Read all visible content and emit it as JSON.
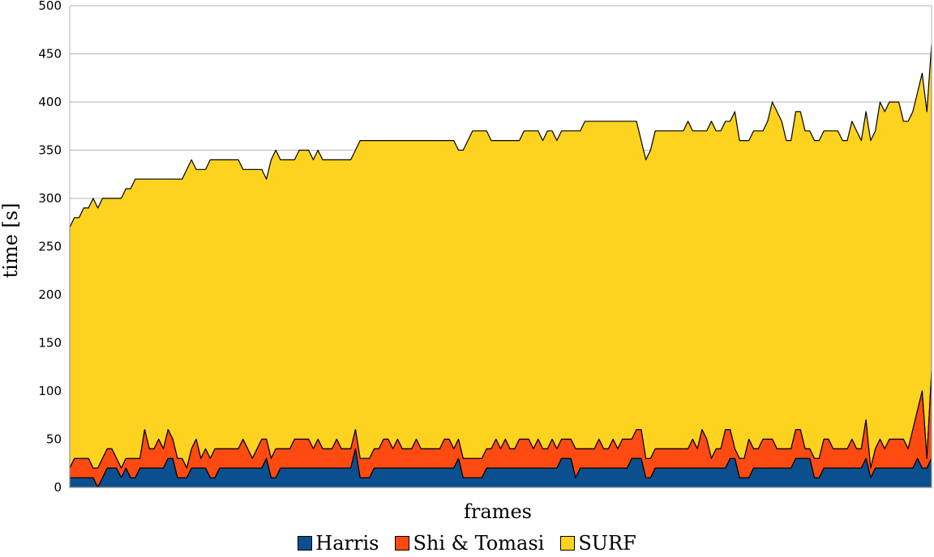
{
  "chart_data": {
    "type": "area",
    "stacked": true,
    "xlabel": "frames",
    "ylabel": "time [s]",
    "ylim": [
      0,
      500
    ],
    "yticks": [
      0,
      50,
      100,
      150,
      200,
      250,
      300,
      350,
      400,
      450,
      500
    ],
    "grid": "horizontal",
    "legend_position": "bottom",
    "n_frames": 185,
    "series": [
      {
        "name": "Harris",
        "color": "#0b4f8e",
        "values": [
          10,
          10,
          10,
          10,
          10,
          10,
          0,
          10,
          20,
          20,
          20,
          10,
          20,
          10,
          10,
          20,
          20,
          20,
          20,
          20,
          20,
          30,
          30,
          10,
          10,
          10,
          20,
          20,
          20,
          20,
          10,
          10,
          20,
          20,
          20,
          20,
          20,
          20,
          20,
          20,
          20,
          20,
          30,
          10,
          10,
          20,
          20,
          20,
          20,
          20,
          20,
          20,
          20,
          20,
          20,
          20,
          20,
          20,
          20,
          20,
          20,
          40,
          10,
          10,
          10,
          20,
          20,
          20,
          20,
          20,
          20,
          20,
          20,
          20,
          20,
          20,
          20,
          20,
          20,
          20,
          20,
          20,
          20,
          30,
          10,
          10,
          10,
          10,
          10,
          20,
          20,
          20,
          20,
          20,
          20,
          20,
          20,
          20,
          20,
          20,
          20,
          20,
          20,
          20,
          20,
          30,
          30,
          30,
          10,
          20,
          20,
          20,
          20,
          20,
          20,
          20,
          20,
          20,
          20,
          20,
          30,
          30,
          30,
          10,
          10,
          20,
          20,
          20,
          20,
          20,
          20,
          20,
          20,
          20,
          20,
          20,
          20,
          20,
          20,
          20,
          20,
          30,
          30,
          10,
          10,
          10,
          20,
          20,
          20,
          20,
          20,
          20,
          20,
          20,
          20,
          30,
          30,
          30,
          30,
          10,
          10,
          20,
          20,
          20,
          20,
          20,
          20,
          20,
          20,
          20,
          30,
          10,
          20,
          20,
          20,
          20,
          20,
          20,
          20,
          20,
          20,
          30,
          20,
          20,
          30,
          20,
          20,
          110
        ]
      },
      {
        "name": "Shi & Tomasi",
        "color": "#ff4a12",
        "values": [
          10,
          20,
          20,
          20,
          20,
          10,
          20,
          20,
          20,
          20,
          10,
          10,
          10,
          20,
          20,
          10,
          40,
          20,
          20,
          30,
          20,
          30,
          20,
          20,
          20,
          10,
          20,
          30,
          10,
          20,
          20,
          30,
          20,
          20,
          20,
          20,
          20,
          30,
          20,
          10,
          20,
          30,
          20,
          20,
          30,
          20,
          20,
          20,
          30,
          30,
          30,
          30,
          20,
          30,
          20,
          20,
          20,
          30,
          20,
          20,
          20,
          20,
          20,
          20,
          20,
          20,
          20,
          30,
          30,
          20,
          30,
          20,
          20,
          20,
          30,
          20,
          20,
          20,
          20,
          20,
          30,
          30,
          20,
          20,
          20,
          20,
          20,
          20,
          20,
          20,
          20,
          30,
          20,
          30,
          20,
          20,
          30,
          30,
          30,
          20,
          30,
          20,
          20,
          30,
          20,
          20,
          20,
          20,
          30,
          20,
          20,
          20,
          20,
          30,
          20,
          20,
          30,
          20,
          30,
          30,
          20,
          30,
          30,
          20,
          20,
          20,
          20,
          20,
          20,
          20,
          20,
          20,
          20,
          30,
          20,
          40,
          30,
          10,
          20,
          20,
          40,
          30,
          10,
          20,
          20,
          40,
          20,
          20,
          30,
          30,
          30,
          20,
          20,
          20,
          20,
          30,
          30,
          10,
          10,
          20,
          20,
          30,
          30,
          20,
          20,
          20,
          20,
          30,
          20,
          20,
          40,
          10,
          20,
          30,
          20,
          30,
          30,
          30,
          30,
          20,
          40,
          50,
          80,
          10,
          90,
          90,
          10
        ]
      },
      {
        "name": "SURF",
        "color": "#fdd31f",
        "values": [
          250,
          250,
          250,
          260,
          260,
          280,
          270,
          270,
          260,
          260,
          270,
          280,
          280,
          280,
          290,
          290,
          260,
          280,
          280,
          270,
          280,
          260,
          270,
          290,
          290,
          310,
          300,
          280,
          300,
          290,
          310,
          300,
          300,
          300,
          300,
          300,
          300,
          280,
          290,
          300,
          290,
          280,
          270,
          310,
          310,
          300,
          300,
          300,
          290,
          300,
          300,
          300,
          300,
          300,
          300,
          300,
          300,
          290,
          300,
          300,
          300,
          290,
          330,
          330,
          330,
          320,
          320,
          310,
          310,
          320,
          310,
          320,
          320,
          320,
          310,
          320,
          320,
          320,
          320,
          320,
          310,
          310,
          320,
          300,
          320,
          330,
          340,
          340,
          340,
          330,
          320,
          310,
          320,
          310,
          320,
          320,
          310,
          320,
          320,
          330,
          320,
          320,
          330,
          320,
          320,
          320,
          320,
          320,
          330,
          330,
          340,
          340,
          340,
          330,
          340,
          340,
          330,
          340,
          330,
          330,
          330,
          320,
          300,
          310,
          320,
          330,
          330,
          330,
          330,
          330,
          330,
          330,
          340,
          320,
          330,
          310,
          320,
          350,
          330,
          330,
          320,
          320,
          350,
          330,
          330,
          310,
          330,
          330,
          320,
          330,
          350,
          350,
          340,
          320,
          320,
          330,
          330,
          330,
          330,
          330,
          330,
          320,
          320,
          330,
          330,
          320,
          320,
          330,
          330,
          320,
          320,
          340,
          330,
          350,
          350,
          350,
          350,
          350,
          330,
          340,
          330,
          330,
          330,
          360,
          340
        ]
      }
    ]
  }
}
